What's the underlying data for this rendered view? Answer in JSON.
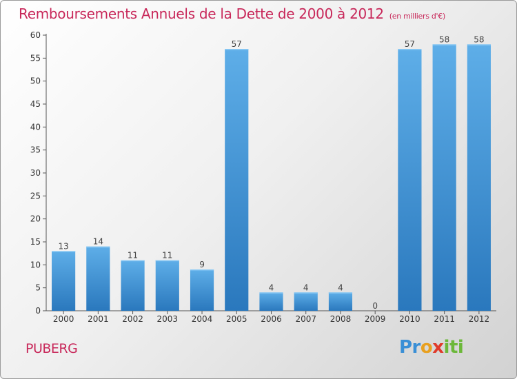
{
  "title": "Remboursements Annuels de la Dette de 2000 à 2012",
  "title_unit": "(en milliers d'€)",
  "place": "PUBERG",
  "brand": "Proxiti",
  "colors": {
    "bar_light": "#5eaee8",
    "bar_dark": "#2a78bd",
    "title": "#c8285a"
  },
  "chart_data": {
    "type": "bar",
    "categories": [
      "2000",
      "2001",
      "2002",
      "2003",
      "2004",
      "2005",
      "2006",
      "2007",
      "2008",
      "2009",
      "2010",
      "2011",
      "2012"
    ],
    "values": [
      13,
      14,
      11,
      11,
      9,
      57,
      4,
      4,
      4,
      0,
      57,
      58,
      58
    ],
    "data_labels": [
      "13",
      "14",
      "11",
      "11",
      "9",
      "57",
      "4",
      "4",
      "4",
      "0",
      "57",
      "58",
      "58"
    ],
    "ylim": [
      0,
      60
    ],
    "yticks": [
      0,
      5,
      10,
      15,
      20,
      25,
      30,
      35,
      40,
      45,
      50,
      55,
      60
    ],
    "grid": false
  }
}
